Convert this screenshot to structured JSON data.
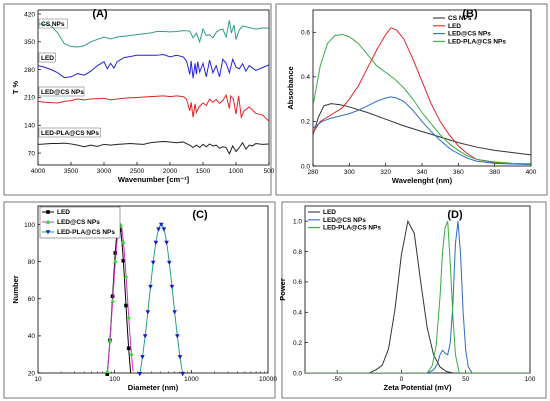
{
  "chart_data": [
    {
      "panel": "(A)",
      "type": "line",
      "xlabel": "Wavenumber [cm⁻¹]",
      "ylabel": "T %",
      "xlim": [
        4000,
        500
      ],
      "ylim": [
        40,
        430
      ],
      "xticks": [
        4000,
        3500,
        3000,
        2500,
        2000,
        1500,
        1000,
        500
      ],
      "yticks": [
        70,
        140,
        210,
        280,
        350,
        420
      ],
      "series": [
        {
          "name": "CS NPs",
          "color": "#2e9c86",
          "x": [
            4000,
            3900,
            3800,
            3700,
            3600,
            3500,
            3400,
            3300,
            3200,
            3000,
            2900,
            2800,
            2700,
            2500,
            2300,
            2200,
            2100,
            2000,
            1900,
            1800,
            1700,
            1650,
            1600,
            1550,
            1500,
            1450,
            1400,
            1350,
            1300,
            1250,
            1200,
            1150,
            1100,
            1070,
            1030,
            1000,
            950,
            900,
            800,
            700,
            600,
            500
          ],
          "y": [
            395,
            394,
            390,
            372,
            345,
            338,
            337,
            340,
            350,
            362,
            357,
            362,
            364,
            368,
            372,
            376,
            376,
            375,
            376,
            378,
            377,
            360,
            372,
            350,
            382,
            366,
            368,
            360,
            374,
            380,
            382,
            362,
            404,
            372,
            392,
            356,
            380,
            390,
            386,
            382,
            385,
            384
          ]
        },
        {
          "name": "LED",
          "color": "#2424d6",
          "x": [
            4000,
            3900,
            3800,
            3700,
            3600,
            3500,
            3400,
            3300,
            3200,
            3100,
            3000,
            2950,
            2900,
            2850,
            2800,
            2700,
            2500,
            2300,
            2200,
            2100,
            2000,
            1900,
            1800,
            1750,
            1700,
            1680,
            1650,
            1620,
            1600,
            1580,
            1550,
            1500,
            1450,
            1400,
            1350,
            1300,
            1250,
            1200,
            1150,
            1100,
            1050,
            1000,
            950,
            900,
            850,
            800,
            700,
            600,
            500
          ],
          "y": [
            290,
            286,
            280,
            272,
            260,
            262,
            270,
            266,
            276,
            290,
            300,
            282,
            296,
            284,
            300,
            310,
            316,
            316,
            316,
            318,
            312,
            316,
            312,
            302,
            268,
            302,
            258,
            296,
            268,
            300,
            274,
            296,
            262,
            304,
            272,
            290,
            262,
            306,
            296,
            272,
            306,
            286,
            282,
            295,
            276,
            290,
            278,
            285,
            292
          ]
        },
        {
          "name": "LED@CS NPs",
          "color": "#e02424",
          "x": [
            4000,
            3900,
            3800,
            3700,
            3600,
            3500,
            3400,
            3300,
            3200,
            3000,
            2900,
            2800,
            2700,
            2500,
            2300,
            2200,
            2100,
            2000,
            1900,
            1800,
            1750,
            1700,
            1680,
            1650,
            1620,
            1600,
            1560,
            1500,
            1450,
            1400,
            1350,
            1300,
            1250,
            1200,
            1150,
            1100,
            1080,
            1040,
            1000,
            960,
            920,
            880,
            800,
            700,
            600,
            500
          ],
          "y": [
            200,
            198,
            197,
            196,
            200,
            202,
            206,
            204,
            206,
            208,
            204,
            206,
            208,
            210,
            212,
            213,
            214,
            212,
            214,
            212,
            206,
            176,
            198,
            160,
            194,
            172,
            186,
            196,
            190,
            206,
            198,
            205,
            195,
            202,
            216,
            182,
            214,
            206,
            168,
            214,
            160,
            176,
            186,
            170,
            166,
            150
          ]
        },
        {
          "name": "LED-PLA@CS NPs",
          "color": "#222222",
          "x": [
            4000,
            3900,
            3800,
            3700,
            3600,
            3500,
            3400,
            3300,
            3200,
            3100,
            3000,
            2900,
            2800,
            2700,
            2600,
            2500,
            2400,
            2300,
            2200,
            2100,
            2000,
            1900,
            1800,
            1750,
            1700,
            1650,
            1600,
            1550,
            1500,
            1450,
            1400,
            1350,
            1300,
            1250,
            1200,
            1150,
            1100,
            1050,
            1000,
            950,
            900,
            850,
            800,
            750,
            700,
            600,
            500
          ],
          "y": [
            92,
            93,
            94,
            94,
            95,
            93,
            90,
            86,
            90,
            87,
            92,
            90,
            92,
            93,
            94,
            93,
            92,
            96,
            98,
            99,
            98,
            96,
            98,
            94,
            90,
            84,
            90,
            84,
            92,
            86,
            93,
            88,
            90,
            82,
            86,
            84,
            68,
            88,
            74,
            84,
            96,
            80,
            90,
            88,
            94,
            92,
            93
          ]
        }
      ]
    },
    {
      "panel": "(B)",
      "type": "line",
      "xlabel": "Wavelenght (nm)",
      "ylabel": "Absorbance",
      "xlim": [
        280,
        400
      ],
      "ylim": [
        0,
        0.7
      ],
      "xticks": [
        280,
        300,
        320,
        340,
        360,
        380,
        400
      ],
      "yticks": [
        0.0,
        0.2,
        0.4,
        0.6
      ],
      "series": [
        {
          "name": "CS NPs",
          "color": "#333333",
          "x": [
            280,
            283,
            286,
            290,
            295,
            300,
            310,
            320,
            330,
            340,
            350,
            360,
            370,
            380,
            390,
            400
          ],
          "y": [
            0.14,
            0.22,
            0.27,
            0.28,
            0.275,
            0.265,
            0.24,
            0.21,
            0.18,
            0.155,
            0.13,
            0.105,
            0.085,
            0.07,
            0.06,
            0.05
          ]
        },
        {
          "name": "LED",
          "color": "#e02424",
          "x": [
            280,
            284,
            290,
            296,
            300,
            305,
            310,
            315,
            320,
            323,
            326,
            330,
            335,
            340,
            345,
            350,
            355,
            360,
            365,
            370,
            380,
            390,
            400
          ],
          "y": [
            0.15,
            0.2,
            0.23,
            0.26,
            0.3,
            0.36,
            0.44,
            0.52,
            0.59,
            0.62,
            0.61,
            0.57,
            0.48,
            0.38,
            0.28,
            0.2,
            0.14,
            0.09,
            0.055,
            0.03,
            0.015,
            0.01,
            0.008
          ]
        },
        {
          "name": "LED@CS NPs",
          "color": "#2a6cc4",
          "x": [
            280,
            285,
            290,
            295,
            300,
            305,
            310,
            315,
            320,
            323,
            326,
            330,
            335,
            340,
            345,
            350,
            355,
            360,
            365,
            370,
            380,
            390,
            400
          ],
          "y": [
            0.17,
            0.2,
            0.215,
            0.225,
            0.235,
            0.25,
            0.27,
            0.29,
            0.305,
            0.31,
            0.305,
            0.29,
            0.25,
            0.2,
            0.155,
            0.115,
            0.08,
            0.055,
            0.035,
            0.022,
            0.012,
            0.009,
            0.007
          ]
        },
        {
          "name": "LED-PLA@CS NPs",
          "color": "#3aaa44",
          "x": [
            280,
            284,
            288,
            292,
            296,
            300,
            305,
            310,
            315,
            320,
            325,
            330,
            335,
            340,
            345,
            350,
            355,
            360,
            365,
            370,
            380,
            390,
            400
          ],
          "y": [
            0.27,
            0.45,
            0.55,
            0.585,
            0.59,
            0.58,
            0.55,
            0.5,
            0.45,
            0.42,
            0.39,
            0.35,
            0.3,
            0.24,
            0.19,
            0.14,
            0.1,
            0.07,
            0.045,
            0.03,
            0.018,
            0.012,
            0.01
          ]
        }
      ]
    },
    {
      "panel": "(C)",
      "type": "line",
      "xlabel": "Diameter (nm)",
      "ylabel": "Number",
      "xscale": "log",
      "xlim": [
        10,
        10000
      ],
      "ylim": [
        20,
        110
      ],
      "xticks": [
        10,
        100,
        1000,
        10000
      ],
      "yticks": [
        20,
        40,
        60,
        80,
        100
      ],
      "series": [
        {
          "name": "LED",
          "color": "#000000",
          "marker": "square",
          "peak": 114,
          "sigma": 0.085
        },
        {
          "name": "LED@CS NPs",
          "color": "#cc33cc",
          "marker": "triangle-up",
          "markerColor": "#33dd33",
          "peak": 118,
          "sigma": 0.095
        },
        {
          "name": "LED-PLA@CS NPs",
          "color": "#2aa17a",
          "marker": "triangle-down",
          "markerColor": "#1a1acc",
          "peak": 405,
          "sigma": 0.155
        }
      ]
    },
    {
      "panel": "(D)",
      "type": "line",
      "xlabel": "Zeta Potential (mV)",
      "ylabel": "Power",
      "xlim": [
        -75,
        100
      ],
      "ylim": [
        0,
        1.1
      ],
      "xticks": [
        -50,
        0,
        50,
        100
      ],
      "yticks": [
        0.0,
        0.2,
        0.4,
        0.6,
        0.8,
        1.0
      ],
      "series": [
        {
          "name": "LED",
          "color": "#333333",
          "x": [
            -75,
            -25,
            -20,
            -15,
            -10,
            -5,
            0,
            5,
            10,
            15,
            20,
            25,
            30,
            35,
            40,
            100
          ],
          "y": [
            0,
            0,
            0.02,
            0.05,
            0.16,
            0.42,
            0.78,
            1.0,
            0.92,
            0.6,
            0.3,
            0.12,
            0.04,
            0.01,
            0,
            0
          ]
        },
        {
          "name": "LED@CS NPs",
          "color": "#2a6cc4",
          "x": [
            -75,
            20,
            25,
            28,
            30,
            32,
            34,
            36,
            38,
            40,
            42,
            44,
            46,
            48,
            50,
            52,
            55,
            100
          ],
          "y": [
            0,
            0,
            0.02,
            0.06,
            0.12,
            0.15,
            0.13,
            0.12,
            0.2,
            0.45,
            0.85,
            1.0,
            0.78,
            0.4,
            0.15,
            0.04,
            0,
            0
          ]
        },
        {
          "name": "LED-PLA@CS NPs",
          "color": "#3aaa44",
          "x": [
            -75,
            20,
            24,
            27,
            30,
            32,
            34,
            36,
            38,
            40,
            42,
            45,
            100
          ],
          "y": [
            0,
            0,
            0.05,
            0.18,
            0.5,
            0.8,
            0.96,
            1.0,
            0.72,
            0.38,
            0.12,
            0,
            0
          ]
        }
      ]
    }
  ]
}
